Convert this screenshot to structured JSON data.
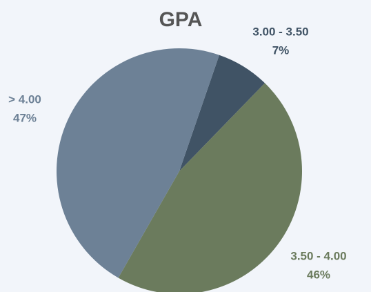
{
  "chart_data": {
    "type": "pie",
    "title": "GPA",
    "categories": [
      "3.00 - 3.50",
      "3.50 - 4.00",
      "> 4.00"
    ],
    "values": [
      7,
      46,
      47
    ],
    "value_labels": [
      "7%",
      "46%",
      "47%"
    ],
    "colors": [
      "#405365",
      "#6b7b5d",
      "#6d8196"
    ]
  }
}
